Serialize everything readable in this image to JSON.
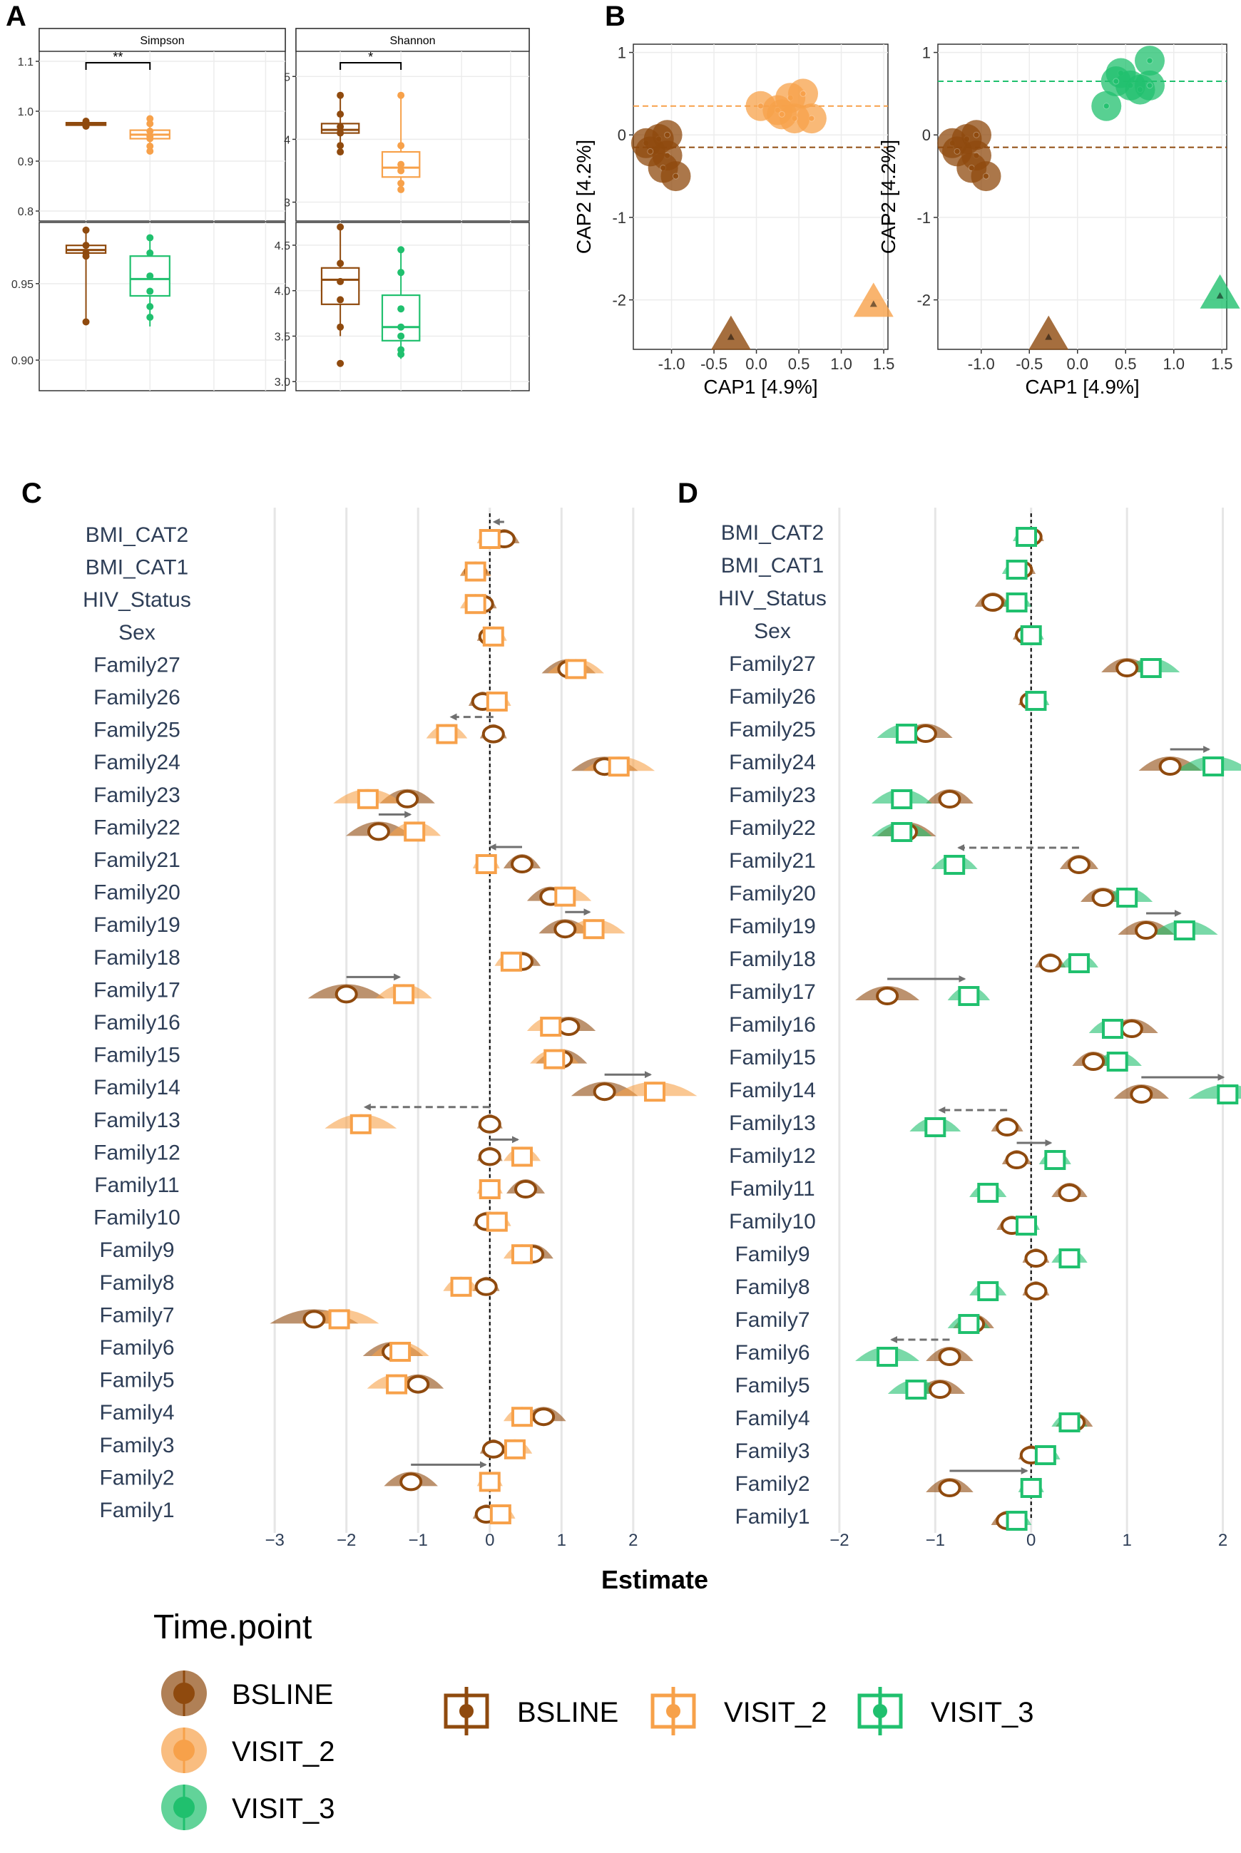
{
  "colors": {
    "BSLINE": "#8f4a0e",
    "VISIT_2": "#f7a14a",
    "VISIT_3": "#20c06e",
    "grid": "#e6e6e6",
    "arrow": "#707070"
  },
  "panel_letters": [
    "A",
    "B",
    "C",
    "D"
  ],
  "chart_data": [
    {
      "id": "A",
      "type": "box",
      "facets": [
        "Simpson",
        "Shannon"
      ],
      "rows": [
        {
          "groups": [
            "BSLINE",
            "VISIT_2"
          ],
          "simpson": {
            "ylim": [
              0.78,
              1.12
            ],
            "ticks": [
              "0.8",
              "0.9",
              "1.0",
              "1.1"
            ],
            "tick_values": [
              0.8,
              0.9,
              1.0,
              1.1
            ],
            "boxes": [
              {
                "group": "BSLINE",
                "q1": 0.972,
                "median": 0.975,
                "q3": 0.977,
                "lo": 0.97,
                "hi": 0.98,
                "points": [
                  0.97,
                  0.972,
                  0.975,
                  0.977,
                  0.98,
                  0.971
                ]
              },
              {
                "group": "VISIT_2",
                "q1": 0.945,
                "median": 0.953,
                "q3": 0.962,
                "lo": 0.92,
                "hi": 0.985,
                "points": [
                  0.92,
                  0.93,
                  0.95,
                  0.96,
                  0.985,
                  0.975,
                  0.945
                ]
              }
            ],
            "signif": "**"
          },
          "shannon": {
            "ylim": [
              2.7,
              5.4
            ],
            "ticks": [
              "3",
              "4",
              "5"
            ],
            "tick_values": [
              3,
              4,
              5
            ],
            "boxes": [
              {
                "group": "BSLINE",
                "q1": 4.1,
                "median": 4.15,
                "q3": 4.25,
                "lo": 3.8,
                "hi": 4.7,
                "points": [
                  4.7,
                  4.4,
                  4.2,
                  4.1,
                  3.9,
                  3.8
                ]
              },
              {
                "group": "VISIT_2",
                "q1": 3.4,
                "median": 3.55,
                "q3": 3.8,
                "lo": 3.2,
                "hi": 4.7,
                "points": [
                  4.7,
                  3.9,
                  3.6,
                  3.5,
                  3.3,
                  3.2
                ]
              }
            ],
            "signif": "*"
          }
        },
        {
          "groups": [
            "BSLINE",
            "VISIT_3"
          ],
          "simpson": {
            "ylim": [
              0.88,
              0.99
            ],
            "ticks": [
              "0.90",
              "0.95"
            ],
            "tick_values": [
              0.9,
              0.95
            ],
            "boxes": [
              {
                "group": "BSLINE",
                "q1": 0.97,
                "median": 0.972,
                "q3": 0.975,
                "lo": 0.925,
                "hi": 0.985,
                "points": [
                  0.985,
                  0.975,
                  0.97,
                  0.968,
                  0.925
                ]
              },
              {
                "group": "VISIT_3",
                "q1": 0.942,
                "median": 0.953,
                "q3": 0.968,
                "lo": 0.922,
                "hi": 0.98,
                "points": [
                  0.98,
                  0.97,
                  0.955,
                  0.945,
                  0.935,
                  0.928
                ]
              }
            ]
          },
          "shannon": {
            "ylim": [
              2.9,
              4.75
            ],
            "ticks": [
              "3.0",
              "3.5",
              "4.0",
              "4.5"
            ],
            "tick_values": [
              3.0,
              3.5,
              4.0,
              4.5
            ],
            "boxes": [
              {
                "group": "BSLINE",
                "q1": 3.85,
                "median": 4.12,
                "q3": 4.25,
                "lo": 3.5,
                "hi": 4.7,
                "points": [
                  4.7,
                  4.3,
                  4.1,
                  3.9,
                  3.6,
                  3.2
                ]
              },
              {
                "group": "VISIT_3",
                "q1": 3.45,
                "median": 3.6,
                "q3": 3.95,
                "lo": 3.25,
                "hi": 4.45,
                "points": [
                  4.45,
                  4.2,
                  3.8,
                  3.6,
                  3.5,
                  3.35,
                  3.3
                ]
              }
            ]
          }
        }
      ]
    },
    {
      "id": "B",
      "type": "scatter",
      "xlabel": "CAP1   [4.9%]",
      "ylabel": "CAP2   [4.2%]",
      "xlim": [
        -1.45,
        1.55
      ],
      "ylim": [
        -2.6,
        1.1
      ],
      "xticks": [
        "-1.0",
        "-0.5",
        "0.0",
        "0.5",
        "1.0",
        "1.5"
      ],
      "xtick_values": [
        -1.0,
        -0.5,
        0.0,
        0.5,
        1.0,
        1.5
      ],
      "yticks": [
        "1",
        "0",
        "-1",
        "-2"
      ],
      "ytick_values": [
        1,
        0,
        -1,
        -2
      ],
      "panels": [
        {
          "groups": {
            "BSLINE": {
              "hline": -0.15,
              "centroid": [
                -0.3,
                -2.45
              ],
              "points": [
                [
                  -1.3,
                  -0.1
                ],
                [
                  -1.15,
                  -0.05
                ],
                [
                  -1.05,
                  -0.25
                ],
                [
                  -1.25,
                  -0.2
                ],
                [
                  -1.1,
                  -0.4
                ],
                [
                  -0.95,
                  -0.5
                ],
                [
                  -1.05,
                  0.0
                ]
              ]
            },
            "VISIT_2": {
              "hline": 0.35,
              "centroid": [
                1.38,
                -2.05
              ],
              "points": [
                [
                  0.05,
                  0.35
                ],
                [
                  0.25,
                  0.3
                ],
                [
                  0.4,
                  0.45
                ],
                [
                  0.55,
                  0.5
                ],
                [
                  0.65,
                  0.2
                ],
                [
                  0.45,
                  0.2
                ],
                [
                  0.3,
                  0.25
                ]
              ]
            }
          }
        },
        {
          "groups": {
            "BSLINE": {
              "hline": -0.15,
              "centroid": [
                -0.3,
                -2.45
              ],
              "points": [
                [
                  -1.3,
                  -0.1
                ],
                [
                  -1.15,
                  -0.05
                ],
                [
                  -1.05,
                  -0.25
                ],
                [
                  -1.25,
                  -0.2
                ],
                [
                  -1.1,
                  -0.4
                ],
                [
                  -0.95,
                  -0.5
                ],
                [
                  -1.05,
                  0.0
                ]
              ]
            },
            "VISIT_3": {
              "hline": 0.65,
              "centroid": [
                1.48,
                -1.95
              ],
              "points": [
                [
                  0.3,
                  0.35
                ],
                [
                  0.45,
                  0.75
                ],
                [
                  0.55,
                  0.6
                ],
                [
                  0.75,
                  0.9
                ],
                [
                  0.65,
                  0.55
                ],
                [
                  0.75,
                  0.6
                ],
                [
                  0.4,
                  0.65
                ]
              ]
            }
          }
        }
      ]
    },
    {
      "id": "C",
      "type": "forest",
      "xlabel": "Estimate",
      "group_a": "BSLINE",
      "group_b": "VISIT_2",
      "xlim": [
        -3.3,
        2.3
      ],
      "xticks": [
        "−3",
        "−2",
        "−1",
        "0",
        "1",
        "2"
      ],
      "xtick_values": [
        -3,
        -2,
        -1,
        0,
        1,
        2
      ],
      "rows": [
        {
          "label": "BMI_CAT2",
          "a": 0.2,
          "b": 0.0,
          "arrow": "dashed"
        },
        {
          "label": "BMI_CAT1",
          "a": -0.2,
          "b": -0.2,
          "arrow": "none"
        },
        {
          "label": "HIV_Status",
          "a": -0.1,
          "b": -0.2,
          "arrow": "none"
        },
        {
          "label": "Sex",
          "a": 0.0,
          "b": 0.05,
          "arrow": "none"
        },
        {
          "label": "Family27",
          "a": 1.1,
          "b": 1.2,
          "arrow": "none"
        },
        {
          "label": "Family26",
          "a": -0.1,
          "b": 0.1,
          "arrow": "none"
        },
        {
          "label": "Family25",
          "a": 0.05,
          "b": -0.6,
          "arrow": "dashed"
        },
        {
          "label": "Family24",
          "a": 1.6,
          "b": 1.8,
          "arrow": "none"
        },
        {
          "label": "Family23",
          "a": -1.15,
          "b": -1.7,
          "arrow": "none"
        },
        {
          "label": "Family22",
          "a": -1.55,
          "b": -1.05,
          "arrow": "solid"
        },
        {
          "label": "Family21",
          "a": 0.45,
          "b": -0.05,
          "arrow": "solid"
        },
        {
          "label": "Family20",
          "a": 0.85,
          "b": 1.05,
          "arrow": "none"
        },
        {
          "label": "Family19",
          "a": 1.05,
          "b": 1.45,
          "arrow": "solid"
        },
        {
          "label": "Family18",
          "a": 0.45,
          "b": 0.3,
          "arrow": "none"
        },
        {
          "label": "Family17",
          "a": -2.0,
          "b": -1.2,
          "arrow": "solid"
        },
        {
          "label": "Family16",
          "a": 1.1,
          "b": 0.85,
          "arrow": "none"
        },
        {
          "label": "Family15",
          "a": 1.0,
          "b": 0.9,
          "arrow": "none"
        },
        {
          "label": "Family14",
          "a": 1.6,
          "b": 2.3,
          "arrow": "solid"
        },
        {
          "label": "Family13",
          "a": 0.0,
          "b": -1.8,
          "arrow": "dashed"
        },
        {
          "label": "Family12",
          "a": 0.0,
          "b": 0.45,
          "arrow": "solid"
        },
        {
          "label": "Family11",
          "a": 0.5,
          "b": 0.0,
          "arrow": "none"
        },
        {
          "label": "Family10",
          "a": -0.05,
          "b": 0.1,
          "arrow": "none"
        },
        {
          "label": "Family9",
          "a": 0.6,
          "b": 0.45,
          "arrow": "none"
        },
        {
          "label": "Family8",
          "a": -0.05,
          "b": -0.4,
          "arrow": "none"
        },
        {
          "label": "Family7",
          "a": -2.45,
          "b": -2.1,
          "arrow": "none"
        },
        {
          "label": "Family6",
          "a": -1.35,
          "b": -1.25,
          "arrow": "none"
        },
        {
          "label": "Family5",
          "a": -1.0,
          "b": -1.3,
          "arrow": "none"
        },
        {
          "label": "Family4",
          "a": 0.75,
          "b": 0.45,
          "arrow": "none"
        },
        {
          "label": "Family3",
          "a": 0.05,
          "b": 0.35,
          "arrow": "none"
        },
        {
          "label": "Family2",
          "a": -1.1,
          "b": 0.0,
          "arrow": "solid"
        },
        {
          "label": "Family1",
          "a": -0.05,
          "b": 0.15,
          "arrow": "none"
        }
      ]
    },
    {
      "id": "D",
      "type": "forest",
      "xlabel": "Estimate",
      "group_a": "BSLINE",
      "group_b": "VISIT_3",
      "xlim": [
        -2.2,
        2.1
      ],
      "xticks": [
        "−2",
        "−1",
        "0",
        "1",
        "2"
      ],
      "xtick_values": [
        -2,
        -1,
        0,
        1,
        2
      ],
      "rows": [
        {
          "label": "BMI_CAT2",
          "a": 0.0,
          "b": -0.05,
          "arrow": "none"
        },
        {
          "label": "BMI_CAT1",
          "a": -0.1,
          "b": -0.15,
          "arrow": "none"
        },
        {
          "label": "HIV_Status",
          "a": -0.4,
          "b": -0.15,
          "arrow": "none"
        },
        {
          "label": "Sex",
          "a": -0.05,
          "b": 0.0,
          "arrow": "none"
        },
        {
          "label": "Family27",
          "a": 1.0,
          "b": 1.25,
          "arrow": "none"
        },
        {
          "label": "Family26",
          "a": 0.0,
          "b": 0.05,
          "arrow": "none"
        },
        {
          "label": "Family25",
          "a": -1.1,
          "b": -1.3,
          "arrow": "none"
        },
        {
          "label": "Family24",
          "a": 1.45,
          "b": 1.9,
          "arrow": "solid"
        },
        {
          "label": "Family23",
          "a": -0.85,
          "b": -1.35,
          "arrow": "none"
        },
        {
          "label": "Family22",
          "a": -1.3,
          "b": -1.35,
          "arrow": "none"
        },
        {
          "label": "Family21",
          "a": 0.5,
          "b": -0.8,
          "arrow": "dashed"
        },
        {
          "label": "Family20",
          "a": 0.75,
          "b": 1.0,
          "arrow": "none"
        },
        {
          "label": "Family19",
          "a": 1.2,
          "b": 1.6,
          "arrow": "solid"
        },
        {
          "label": "Family18",
          "a": 0.2,
          "b": 0.5,
          "arrow": "none"
        },
        {
          "label": "Family17",
          "a": -1.5,
          "b": -0.65,
          "arrow": "solid"
        },
        {
          "label": "Family16",
          "a": 1.05,
          "b": 0.85,
          "arrow": "none"
        },
        {
          "label": "Family15",
          "a": 0.65,
          "b": 0.9,
          "arrow": "none"
        },
        {
          "label": "Family14",
          "a": 1.15,
          "b": 2.05,
          "arrow": "solid"
        },
        {
          "label": "Family13",
          "a": -0.25,
          "b": -1.0,
          "arrow": "dashed"
        },
        {
          "label": "Family12",
          "a": -0.15,
          "b": 0.25,
          "arrow": "solid"
        },
        {
          "label": "Family11",
          "a": 0.4,
          "b": -0.45,
          "arrow": "none"
        },
        {
          "label": "Family10",
          "a": -0.2,
          "b": -0.05,
          "arrow": "none"
        },
        {
          "label": "Family9",
          "a": 0.05,
          "b": 0.4,
          "arrow": "none"
        },
        {
          "label": "Family8",
          "a": 0.05,
          "b": -0.45,
          "arrow": "none"
        },
        {
          "label": "Family7",
          "a": -0.6,
          "b": -0.65,
          "arrow": "none"
        },
        {
          "label": "Family6",
          "a": -0.85,
          "b": -1.5,
          "arrow": "dashed"
        },
        {
          "label": "Family5",
          "a": -0.95,
          "b": -1.2,
          "arrow": "none"
        },
        {
          "label": "Family4",
          "a": 0.45,
          "b": 0.4,
          "arrow": "none"
        },
        {
          "label": "Family3",
          "a": 0.0,
          "b": 0.15,
          "arrow": "none"
        },
        {
          "label": "Family2",
          "a": -0.85,
          "b": 0.0,
          "arrow": "solid"
        },
        {
          "label": "Family1",
          "a": -0.25,
          "b": -0.15,
          "arrow": "none"
        }
      ]
    }
  ],
  "legend": {
    "title": "Time.point",
    "items": [
      "BSLINE",
      "VISIT_2",
      "VISIT_3"
    ]
  }
}
